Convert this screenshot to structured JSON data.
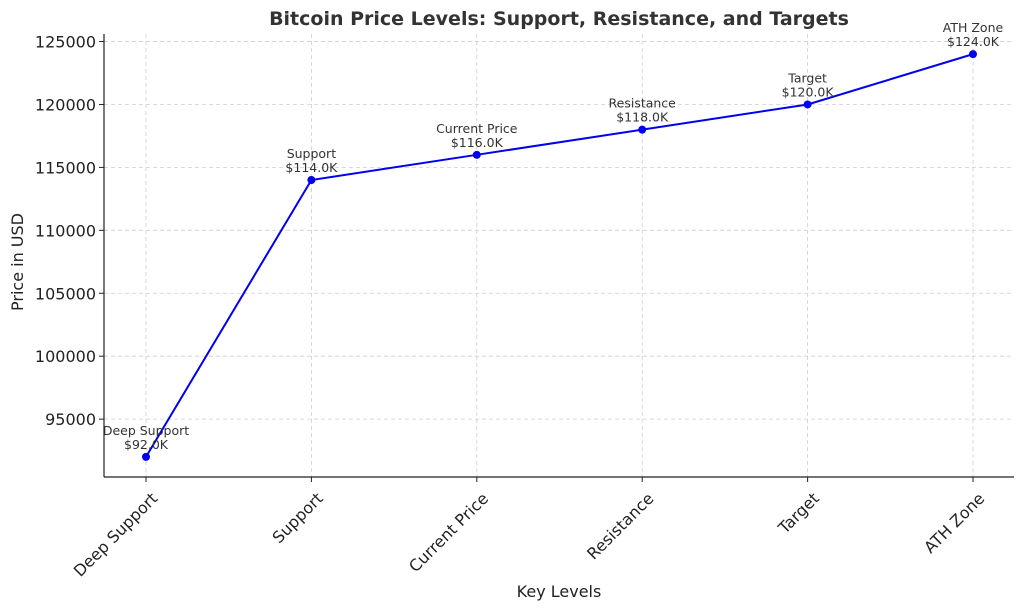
{
  "chart_data": {
    "type": "line",
    "title": "Bitcoin Price Levels: Support, Resistance, and Targets",
    "xlabel": "Key Levels",
    "ylabel": "Price in USD",
    "categories": [
      "Deep Support",
      "Support",
      "Current Price",
      "Resistance",
      "Target",
      "ATH Zone"
    ],
    "series": [
      {
        "values": [
          92000,
          114000,
          116000,
          118000,
          120000,
          124000
        ],
        "color": "#0000ee",
        "marker": "circle"
      }
    ],
    "point_labels": [
      [
        "Deep Support",
        "$92.0K"
      ],
      [
        "Support",
        "$114.0K"
      ],
      [
        "Current Price",
        "$116.0K"
      ],
      [
        "Resistance",
        "$118.0K"
      ],
      [
        "Target",
        "$120.0K"
      ],
      [
        "ATH Zone",
        "$124.0K"
      ]
    ],
    "yticks": [
      95000,
      100000,
      105000,
      110000,
      115000,
      120000,
      125000
    ],
    "ylim": [
      90400,
      125600
    ],
    "grid": true,
    "legend": "none"
  }
}
